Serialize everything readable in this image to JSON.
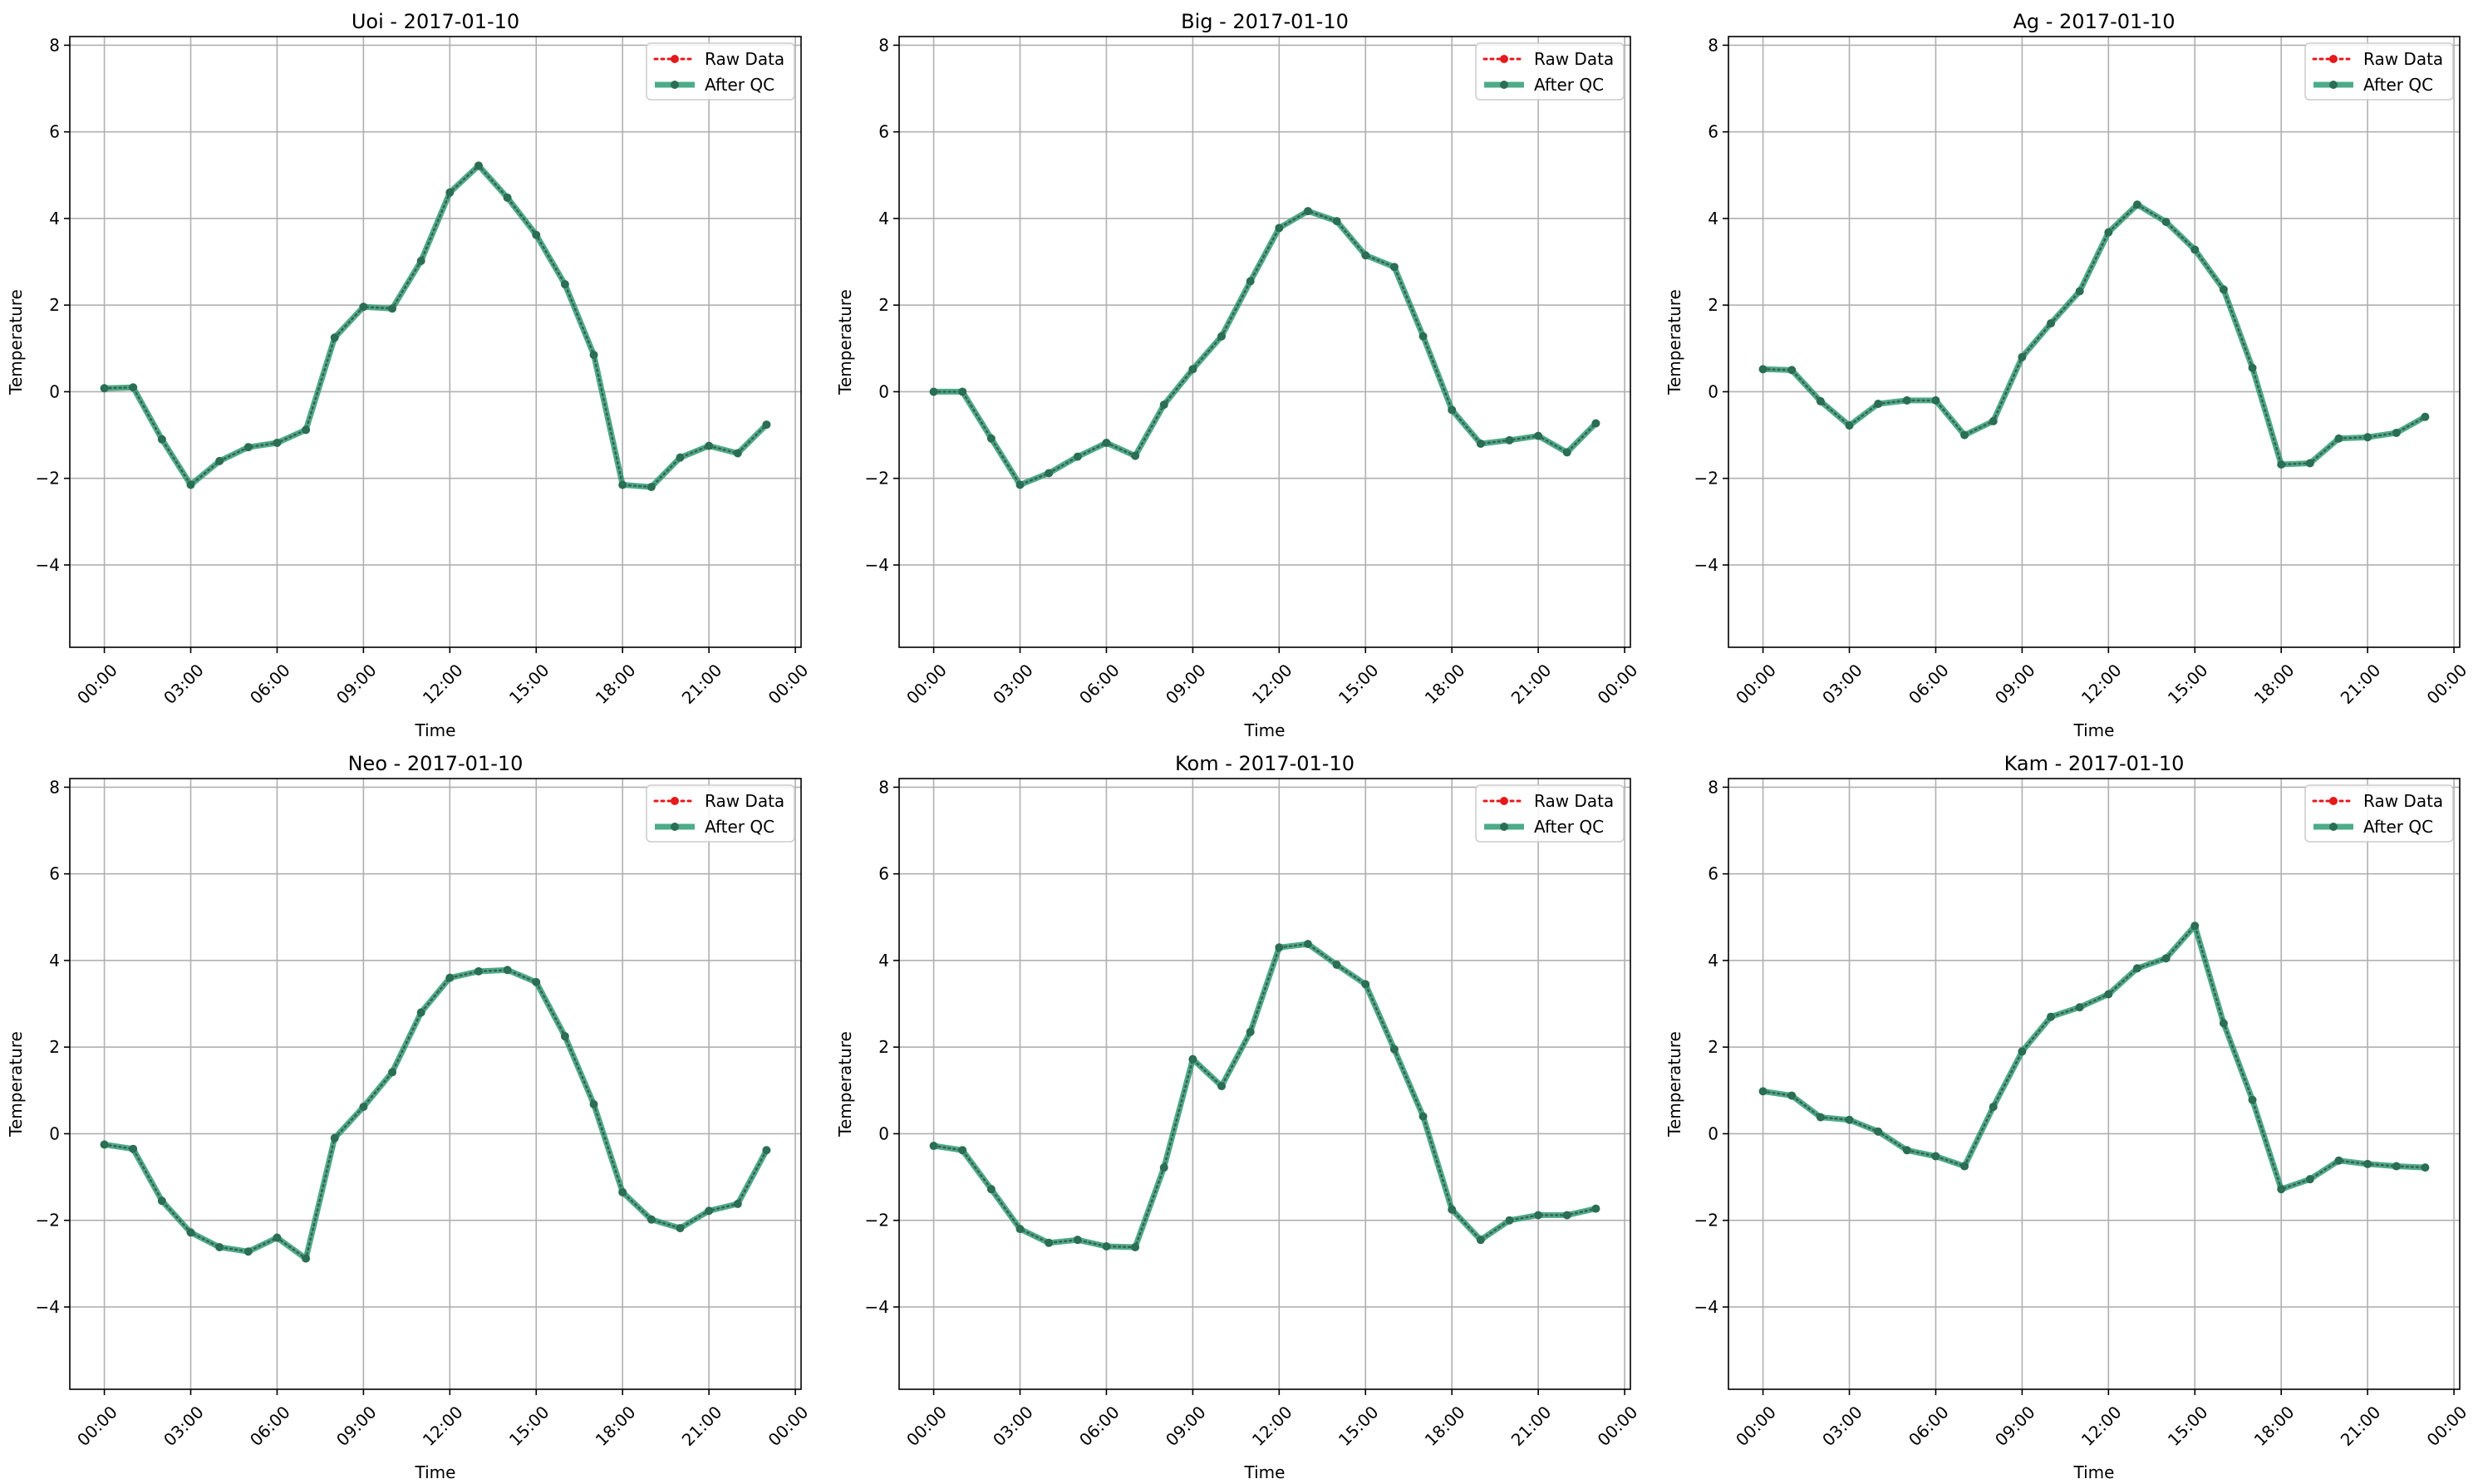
{
  "figure": {
    "background": "#ffffff"
  },
  "legend": {
    "raw_label": "Raw Data",
    "qc_label": "After QC"
  },
  "colors": {
    "raw": "#e41a1c",
    "qc": "#2e9c75",
    "marker_qc": "#2a6e54",
    "grid": "#b0b0b0",
    "axis": "#000000"
  },
  "chart_data": [
    {
      "type": "line",
      "title": "Uoi - 2017-01-10",
      "xlabel": "Time",
      "ylabel": "Temperature",
      "xlim": [
        -1.2,
        24.2
      ],
      "ylim": [
        -5.9,
        8.2
      ],
      "xticks": [
        0,
        3,
        6,
        9,
        12,
        15,
        18,
        21,
        24
      ],
      "xtick_labels": [
        "00:00",
        "03:00",
        "06:00",
        "09:00",
        "12:00",
        "15:00",
        "18:00",
        "21:00",
        "00:00"
      ],
      "yticks": [
        -4,
        -2,
        0,
        2,
        4,
        6,
        8
      ],
      "ytick_labels": [
        "−4",
        "−2",
        "0",
        "2",
        "4",
        "6",
        "8"
      ],
      "grid": true,
      "legend_position": "top-right",
      "x": [
        0,
        1,
        2,
        3,
        4,
        5,
        6,
        7,
        8,
        9,
        10,
        11,
        12,
        13,
        14,
        15,
        16,
        17,
        18,
        19,
        20,
        21,
        22,
        23
      ],
      "series": [
        {
          "name": "Raw Data",
          "style": "dotted",
          "values": [
            0.08,
            0.1,
            -1.1,
            -2.15,
            -1.6,
            -1.28,
            -1.18,
            -0.88,
            1.25,
            1.96,
            1.92,
            3.02,
            4.6,
            5.22,
            4.48,
            3.62,
            2.48,
            0.85,
            -2.15,
            -2.2,
            -1.52,
            -1.25,
            -1.42,
            -0.76
          ]
        },
        {
          "name": "After QC",
          "style": "solid",
          "values": [
            0.08,
            0.1,
            -1.1,
            -2.15,
            -1.6,
            -1.28,
            -1.18,
            -0.88,
            1.25,
            1.96,
            1.92,
            3.02,
            4.6,
            5.22,
            4.48,
            3.62,
            2.48,
            0.85,
            -2.15,
            -2.2,
            -1.52,
            -1.25,
            -1.42,
            -0.76
          ]
        }
      ]
    },
    {
      "type": "line",
      "title": "Big - 2017-01-10",
      "xlabel": "Time",
      "ylabel": "Temperature",
      "xlim": [
        -1.2,
        24.2
      ],
      "ylim": [
        -5.9,
        8.2
      ],
      "xticks": [
        0,
        3,
        6,
        9,
        12,
        15,
        18,
        21,
        24
      ],
      "xtick_labels": [
        "00:00",
        "03:00",
        "06:00",
        "09:00",
        "12:00",
        "15:00",
        "18:00",
        "21:00",
        "00:00"
      ],
      "yticks": [
        -4,
        -2,
        0,
        2,
        4,
        6,
        8
      ],
      "ytick_labels": [
        "−4",
        "−2",
        "0",
        "2",
        "4",
        "6",
        "8"
      ],
      "grid": true,
      "legend_position": "top-right",
      "x": [
        0,
        1,
        2,
        3,
        4,
        5,
        6,
        7,
        8,
        9,
        10,
        11,
        12,
        13,
        14,
        15,
        16,
        17,
        18,
        19,
        20,
        21,
        22,
        23
      ],
      "series": [
        {
          "name": "Raw Data",
          "style": "dotted",
          "values": [
            0.0,
            0.0,
            -1.08,
            -2.15,
            -1.88,
            -1.5,
            -1.18,
            -1.48,
            -0.3,
            0.52,
            1.28,
            2.55,
            3.78,
            4.17,
            3.94,
            3.15,
            2.88,
            1.28,
            -0.42,
            -1.2,
            -1.12,
            -1.02,
            -1.4,
            -0.73
          ]
        },
        {
          "name": "After QC",
          "style": "solid",
          "values": [
            0.0,
            0.0,
            -1.08,
            -2.15,
            -1.88,
            -1.5,
            -1.18,
            -1.48,
            -0.3,
            0.52,
            1.28,
            2.55,
            3.78,
            4.17,
            3.94,
            3.15,
            2.88,
            1.28,
            -0.42,
            -1.2,
            -1.12,
            -1.02,
            -1.4,
            -0.73
          ]
        }
      ]
    },
    {
      "type": "line",
      "title": "Ag - 2017-01-10",
      "xlabel": "Time",
      "ylabel": "Temperature",
      "xlim": [
        -1.2,
        24.2
      ],
      "ylim": [
        -5.9,
        8.2
      ],
      "xticks": [
        0,
        3,
        6,
        9,
        12,
        15,
        18,
        21,
        24
      ],
      "xtick_labels": [
        "00:00",
        "03:00",
        "06:00",
        "09:00",
        "12:00",
        "15:00",
        "18:00",
        "21:00",
        "00:00"
      ],
      "yticks": [
        -4,
        -2,
        0,
        2,
        4,
        6,
        8
      ],
      "ytick_labels": [
        "−4",
        "−2",
        "0",
        "2",
        "4",
        "6",
        "8"
      ],
      "grid": true,
      "legend_position": "top-right",
      "x": [
        0,
        1,
        2,
        3,
        4,
        5,
        6,
        7,
        8,
        9,
        10,
        11,
        12,
        13,
        14,
        15,
        16,
        17,
        18,
        19,
        20,
        21,
        22,
        23
      ],
      "series": [
        {
          "name": "Raw Data",
          "style": "dotted",
          "values": [
            0.52,
            0.5,
            -0.22,
            -0.78,
            -0.28,
            -0.2,
            -0.2,
            -1.0,
            -0.68,
            0.8,
            1.58,
            2.32,
            3.68,
            4.32,
            3.92,
            3.28,
            2.36,
            0.55,
            -1.68,
            -1.65,
            -1.08,
            -1.05,
            -0.95,
            -0.58
          ]
        },
        {
          "name": "After QC",
          "style": "solid",
          "values": [
            0.52,
            0.5,
            -0.22,
            -0.78,
            -0.28,
            -0.2,
            -0.2,
            -1.0,
            -0.68,
            0.8,
            1.58,
            2.32,
            3.68,
            4.32,
            3.92,
            3.28,
            2.36,
            0.55,
            -1.68,
            -1.65,
            -1.08,
            -1.05,
            -0.95,
            -0.58
          ]
        }
      ]
    },
    {
      "type": "line",
      "title": "Neo - 2017-01-10",
      "xlabel": "Time",
      "ylabel": "Temperature",
      "xlim": [
        -1.2,
        24.2
      ],
      "ylim": [
        -5.9,
        8.2
      ],
      "xticks": [
        0,
        3,
        6,
        9,
        12,
        15,
        18,
        21,
        24
      ],
      "xtick_labels": [
        "00:00",
        "03:00",
        "06:00",
        "09:00",
        "12:00",
        "15:00",
        "18:00",
        "21:00",
        "00:00"
      ],
      "yticks": [
        -4,
        -2,
        0,
        2,
        4,
        6,
        8
      ],
      "ytick_labels": [
        "−4",
        "−2",
        "0",
        "2",
        "4",
        "6",
        "8"
      ],
      "grid": true,
      "legend_position": "top-right",
      "x": [
        0,
        1,
        2,
        3,
        4,
        5,
        6,
        7,
        8,
        9,
        10,
        11,
        12,
        13,
        14,
        15,
        16,
        17,
        18,
        19,
        20,
        21,
        22,
        23
      ],
      "series": [
        {
          "name": "Raw Data",
          "style": "dotted",
          "values": [
            -0.25,
            -0.35,
            -1.55,
            -2.28,
            -2.62,
            -2.72,
            -2.4,
            -2.88,
            -0.1,
            0.62,
            1.42,
            2.8,
            3.6,
            3.75,
            3.78,
            3.5,
            2.25,
            0.68,
            -1.35,
            -1.98,
            -2.18,
            -1.78,
            -1.62,
            -0.38
          ]
        },
        {
          "name": "After QC",
          "style": "solid",
          "values": [
            -0.25,
            -0.35,
            -1.55,
            -2.28,
            -2.62,
            -2.72,
            -2.4,
            -2.88,
            -0.1,
            0.62,
            1.42,
            2.8,
            3.6,
            3.75,
            3.78,
            3.5,
            2.25,
            0.68,
            -1.35,
            -1.98,
            -2.18,
            -1.78,
            -1.62,
            -0.38
          ]
        }
      ]
    },
    {
      "type": "line",
      "title": "Kom - 2017-01-10",
      "xlabel": "Time",
      "ylabel": "Temperature",
      "xlim": [
        -1.2,
        24.2
      ],
      "ylim": [
        -5.9,
        8.2
      ],
      "xticks": [
        0,
        3,
        6,
        9,
        12,
        15,
        18,
        21,
        24
      ],
      "xtick_labels": [
        "00:00",
        "03:00",
        "06:00",
        "09:00",
        "12:00",
        "15:00",
        "18:00",
        "21:00",
        "00:00"
      ],
      "yticks": [
        -4,
        -2,
        0,
        2,
        4,
        6,
        8
      ],
      "ytick_labels": [
        "−4",
        "−2",
        "0",
        "2",
        "4",
        "6",
        "8"
      ],
      "grid": true,
      "legend_position": "top-right",
      "x": [
        0,
        1,
        2,
        3,
        4,
        5,
        6,
        7,
        8,
        9,
        10,
        11,
        12,
        13,
        14,
        15,
        16,
        17,
        18,
        19,
        20,
        21,
        22,
        23
      ],
      "series": [
        {
          "name": "Raw Data",
          "style": "dotted",
          "values": [
            -0.28,
            -0.38,
            -1.28,
            -2.2,
            -2.52,
            -2.45,
            -2.6,
            -2.62,
            -0.78,
            1.72,
            1.1,
            2.35,
            4.3,
            4.38,
            3.9,
            3.45,
            1.95,
            0.4,
            -1.75,
            -2.45,
            -2.0,
            -1.88,
            -1.88,
            -1.73
          ]
        },
        {
          "name": "After QC",
          "style": "solid",
          "values": [
            -0.28,
            -0.38,
            -1.28,
            -2.2,
            -2.52,
            -2.45,
            -2.6,
            -2.62,
            -0.78,
            1.72,
            1.1,
            2.35,
            4.3,
            4.38,
            3.9,
            3.45,
            1.95,
            0.4,
            -1.75,
            -2.45,
            -2.0,
            -1.88,
            -1.88,
            -1.73
          ]
        }
      ]
    },
    {
      "type": "line",
      "title": "Kam - 2017-01-10",
      "xlabel": "Time",
      "ylabel": "Temperature",
      "xlim": [
        -1.2,
        24.2
      ],
      "ylim": [
        -5.9,
        8.2
      ],
      "xticks": [
        0,
        3,
        6,
        9,
        12,
        15,
        18,
        21,
        24
      ],
      "xtick_labels": [
        "00:00",
        "03:00",
        "06:00",
        "09:00",
        "12:00",
        "15:00",
        "18:00",
        "21:00",
        "00:00"
      ],
      "yticks": [
        -4,
        -2,
        0,
        2,
        4,
        6,
        8
      ],
      "ytick_labels": [
        "−4",
        "−2",
        "0",
        "2",
        "4",
        "6",
        "8"
      ],
      "grid": true,
      "legend_position": "top-right",
      "x": [
        0,
        1,
        2,
        3,
        4,
        5,
        6,
        7,
        8,
        9,
        10,
        11,
        12,
        13,
        14,
        15,
        16,
        17,
        18,
        19,
        20,
        21,
        22,
        23
      ],
      "series": [
        {
          "name": "Raw Data",
          "style": "dotted",
          "values": [
            0.98,
            0.88,
            0.38,
            0.32,
            0.05,
            -0.38,
            -0.52,
            -0.75,
            0.62,
            1.9,
            2.7,
            2.92,
            3.22,
            3.82,
            4.05,
            4.8,
            2.55,
            0.78,
            -1.28,
            -1.05,
            -0.62,
            -0.7,
            -0.75,
            -0.78
          ]
        },
        {
          "name": "After QC",
          "style": "solid",
          "values": [
            0.98,
            0.88,
            0.38,
            0.32,
            0.05,
            -0.38,
            -0.52,
            -0.75,
            0.62,
            1.9,
            2.7,
            2.92,
            3.22,
            3.82,
            4.05,
            4.8,
            2.55,
            0.78,
            -1.28,
            -1.05,
            -0.62,
            -0.7,
            -0.75,
            -0.78
          ]
        }
      ]
    }
  ]
}
